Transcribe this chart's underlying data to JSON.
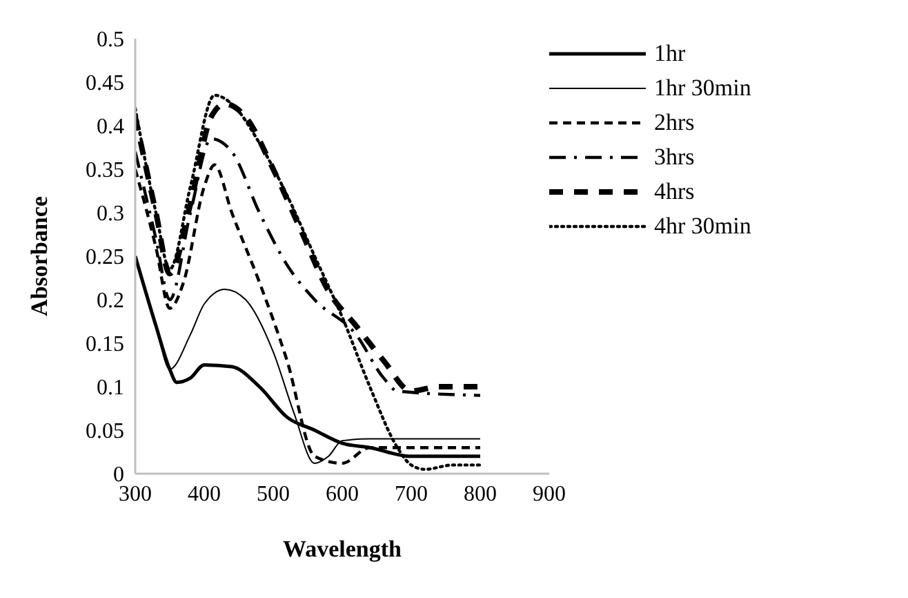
{
  "chart_data": {
    "type": "line",
    "xlabel": "Wavelength",
    "ylabel": "Absorbance",
    "xlim": [
      300,
      900
    ],
    "xticks": [
      300,
      400,
      500,
      600,
      700,
      800,
      900
    ],
    "ylim": [
      0,
      0.5
    ],
    "yticks": [
      0,
      0.05,
      0.1,
      0.15,
      0.2,
      0.25,
      0.3,
      0.35,
      0.4,
      0.45,
      0.5
    ],
    "grid": false,
    "legend": "top right",
    "marker": "none",
    "series": [
      {
        "name": "1hr",
        "color": "#000000",
        "line_style": "solid",
        "x": [
          300,
          330,
          350,
          360,
          380,
          400,
          440,
          480,
          520,
          560,
          600,
          640,
          700,
          800
        ],
        "values": [
          0.25,
          0.17,
          0.12,
          0.105,
          0.11,
          0.125,
          0.123,
          0.1,
          0.065,
          0.05,
          0.035,
          0.03,
          0.02,
          0.02
        ]
      },
      {
        "name": "1hr 30min",
        "color": "#000000",
        "line_style": "solid",
        "x": [
          300,
          330,
          350,
          380,
          400,
          430,
          460,
          500,
          530,
          560,
          580,
          600,
          640,
          800
        ],
        "values": [
          0.25,
          0.17,
          0.12,
          0.16,
          0.195,
          0.212,
          0.2,
          0.14,
          0.07,
          0.012,
          0.02,
          0.038,
          0.04,
          0.04
        ]
      },
      {
        "name": "2hrs",
        "color": "#000000",
        "line_style": "dashed",
        "x": [
          300,
          330,
          350,
          370,
          400,
          415,
          440,
          480,
          520,
          560,
          600,
          640,
          700,
          800
        ],
        "values": [
          0.35,
          0.26,
          0.19,
          0.22,
          0.33,
          0.355,
          0.3,
          0.22,
          0.13,
          0.02,
          0.012,
          0.03,
          0.03,
          0.03
        ]
      },
      {
        "name": "3hrs",
        "color": "#000000",
        "line_style": "dashdot",
        "x": [
          300,
          330,
          350,
          380,
          410,
          440,
          480,
          520,
          560,
          620,
          660,
          680,
          800
        ],
        "values": [
          0.37,
          0.27,
          0.2,
          0.3,
          0.385,
          0.37,
          0.3,
          0.24,
          0.2,
          0.16,
          0.11,
          0.095,
          0.09
        ]
      },
      {
        "name": "4hrs",
        "color": "#000000",
        "line_style": "longdash",
        "x": [
          300,
          330,
          350,
          380,
          410,
          430,
          460,
          500,
          540,
          580,
          620,
          660,
          700,
          740,
          800
        ],
        "values": [
          0.41,
          0.3,
          0.23,
          0.31,
          0.41,
          0.425,
          0.41,
          0.35,
          0.28,
          0.21,
          0.17,
          0.13,
          0.095,
          0.1,
          0.1
        ]
      },
      {
        "name": "4hr 30min",
        "color": "#000000",
        "line_style": "dotted",
        "x": [
          300,
          330,
          350,
          380,
          415,
          440,
          480,
          520,
          560,
          600,
          640,
          680,
          700,
          720,
          760,
          800
        ],
        "values": [
          0.42,
          0.3,
          0.235,
          0.33,
          0.435,
          0.425,
          0.38,
          0.32,
          0.25,
          0.18,
          0.1,
          0.03,
          0.01,
          0.005,
          0.01,
          0.01
        ]
      }
    ]
  }
}
